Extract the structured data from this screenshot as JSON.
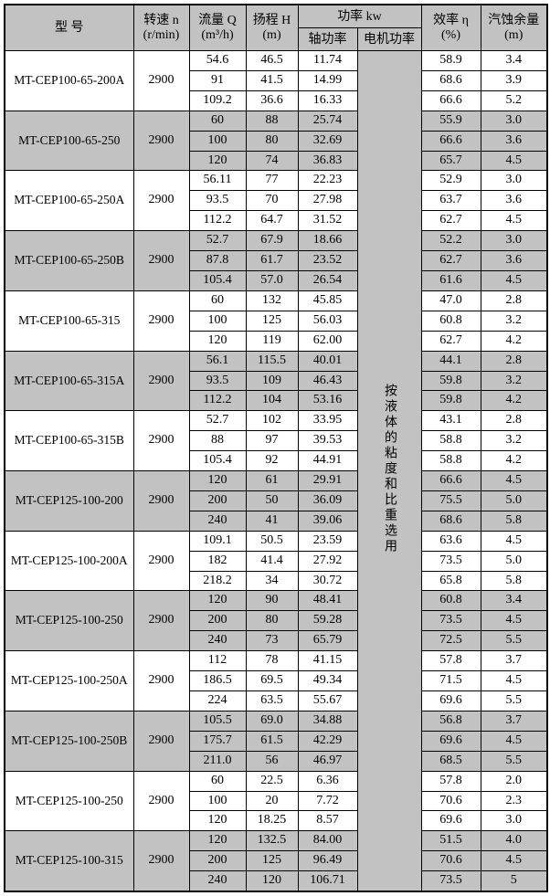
{
  "header": {
    "model": "型  号",
    "speed_1": "转速 n",
    "speed_2": "(r/min)",
    "flow_1": "流量 Q",
    "flow_2": "(m³/h)",
    "head_1": "扬程 H",
    "head_2": "(m)",
    "power": "功率 kw",
    "shaft_power": "轴功率",
    "motor_power": "电机功率",
    "efficiency_1": "效率 η",
    "efficiency_2": "(%)",
    "npsh_1": "汽蚀余量",
    "npsh_2": "(m)"
  },
  "motor_power_note": "按液体的粘度和比重选用",
  "colors": {
    "shade": "#c2c2c2",
    "border": "#000000",
    "text": "#000000"
  },
  "groups": [
    {
      "model": "MT-CEP100-65-200A",
      "speed": "2900",
      "shade": false,
      "rows": [
        [
          "54.6",
          "46.5",
          "11.74",
          "58.9",
          "3.4"
        ],
        [
          "91",
          "41.5",
          "14.99",
          "68.6",
          "3.9"
        ],
        [
          "109.2",
          "36.6",
          "16.33",
          "66.6",
          "5.2"
        ]
      ]
    },
    {
      "model": "MT-CEP100-65-250",
      "speed": "2900",
      "shade": true,
      "rows": [
        [
          "60",
          "88",
          "25.74",
          "55.9",
          "3.0"
        ],
        [
          "100",
          "80",
          "32.69",
          "66.6",
          "3.6"
        ],
        [
          "120",
          "74",
          "36.83",
          "65.7",
          "4.5"
        ]
      ]
    },
    {
      "model": "MT-CEP100-65-250A",
      "speed": "2900",
      "shade": false,
      "rows": [
        [
          "56.11",
          "77",
          "22.23",
          "52.9",
          "3.0"
        ],
        [
          "93.5",
          "70",
          "27.98",
          "63.7",
          "3.6"
        ],
        [
          "112.2",
          "64.7",
          "31.52",
          "62.7",
          "4.5"
        ]
      ]
    },
    {
      "model": "MT-CEP100-65-250B",
      "speed": "2900",
      "shade": true,
      "rows": [
        [
          "52.7",
          "67.9",
          "18.66",
          "52.2",
          "3.0"
        ],
        [
          "87.8",
          "61.7",
          "23.52",
          "62.7",
          "3.6"
        ],
        [
          "105.4",
          "57.0",
          "26.54",
          "61.6",
          "4.5"
        ]
      ]
    },
    {
      "model": "MT-CEP100-65-315",
      "speed": "2900",
      "shade": false,
      "rows": [
        [
          "60",
          "132",
          "45.85",
          "47.0",
          "2.8"
        ],
        [
          "100",
          "125",
          "56.03",
          "60.8",
          "3.2"
        ],
        [
          "120",
          "119",
          "62.00",
          "62.7",
          "4.2"
        ]
      ]
    },
    {
      "model": "MT-CEP100-65-315A",
      "speed": "2900",
      "shade": true,
      "rows": [
        [
          "56.1",
          "115.5",
          "40.01",
          "44.1",
          "2.8"
        ],
        [
          "93.5",
          "109",
          "46.43",
          "59.8",
          "3.2"
        ],
        [
          "112.2",
          "104",
          "53.16",
          "59.8",
          "4.2"
        ]
      ]
    },
    {
      "model": "MT-CEP100-65-315B",
      "speed": "2900",
      "shade": false,
      "rows": [
        [
          "52.7",
          "102",
          "33.95",
          "43.1",
          "2.8"
        ],
        [
          "88",
          "97",
          "39.53",
          "58.8",
          "3.2"
        ],
        [
          "105.4",
          "92",
          "44.91",
          "58.8",
          "4.2"
        ]
      ]
    },
    {
      "model": "MT-CEP125-100-200",
      "speed": "2900",
      "shade": true,
      "rows": [
        [
          "120",
          "61",
          "29.91",
          "66.6",
          "4.5"
        ],
        [
          "200",
          "50",
          "36.09",
          "75.5",
          "5.0"
        ],
        [
          "240",
          "41",
          "39.06",
          "68.6",
          "5.8"
        ]
      ]
    },
    {
      "model": "MT-CEP125-100-200A",
      "speed": "2900",
      "shade": false,
      "rows": [
        [
          "109.1",
          "50.5",
          "23.59",
          "63.6",
          "4.5"
        ],
        [
          "182",
          "41.4",
          "27.92",
          "73.5",
          "5.0"
        ],
        [
          "218.2",
          "34",
          "30.72",
          "65.8",
          "5.8"
        ]
      ]
    },
    {
      "model": "MT-CEP125-100-250",
      "speed": "2900",
      "shade": true,
      "rows": [
        [
          "120",
          "90",
          "48.41",
          "60.8",
          "3.4"
        ],
        [
          "200",
          "80",
          "59.28",
          "73.5",
          "4.5"
        ],
        [
          "240",
          "73",
          "65.79",
          "72.5",
          "5.5"
        ]
      ]
    },
    {
      "model": "MT-CEP125-100-250A",
      "speed": "2900",
      "shade": false,
      "rows": [
        [
          "112",
          "78",
          "41.15",
          "57.8",
          "3.7"
        ],
        [
          "186.5",
          "69.5",
          "49.34",
          "71.5",
          "4.5"
        ],
        [
          "224",
          "63.5",
          "55.67",
          "69.6",
          "5.5"
        ]
      ]
    },
    {
      "model": "MT-CEP125-100-250B",
      "speed": "2900",
      "shade": true,
      "rows": [
        [
          "105.5",
          "69.0",
          "34.88",
          "56.8",
          "3.7"
        ],
        [
          "175.7",
          "61.5",
          "42.29",
          "69.6",
          "4.5"
        ],
        [
          "211.0",
          "56",
          "46.97",
          "68.5",
          "5.5"
        ]
      ]
    },
    {
      "model": "MT-CEP125-100-250",
      "speed": "2900",
      "shade": false,
      "rows": [
        [
          "60",
          "22.5",
          "6.36",
          "57.8",
          "2.0"
        ],
        [
          "100",
          "20",
          "7.72",
          "70.6",
          "2.3"
        ],
        [
          "120",
          "18.25",
          "8.57",
          "69.6",
          "3.0"
        ]
      ]
    },
    {
      "model": "MT-CEP125-100-315",
      "speed": "2900",
      "shade": true,
      "rows": [
        [
          "120",
          "132.5",
          "84.00",
          "51.5",
          "4.0"
        ],
        [
          "200",
          "125",
          "96.49",
          "70.6",
          "4.5"
        ],
        [
          "240",
          "120",
          "106.71",
          "73.5",
          "5"
        ]
      ]
    }
  ]
}
